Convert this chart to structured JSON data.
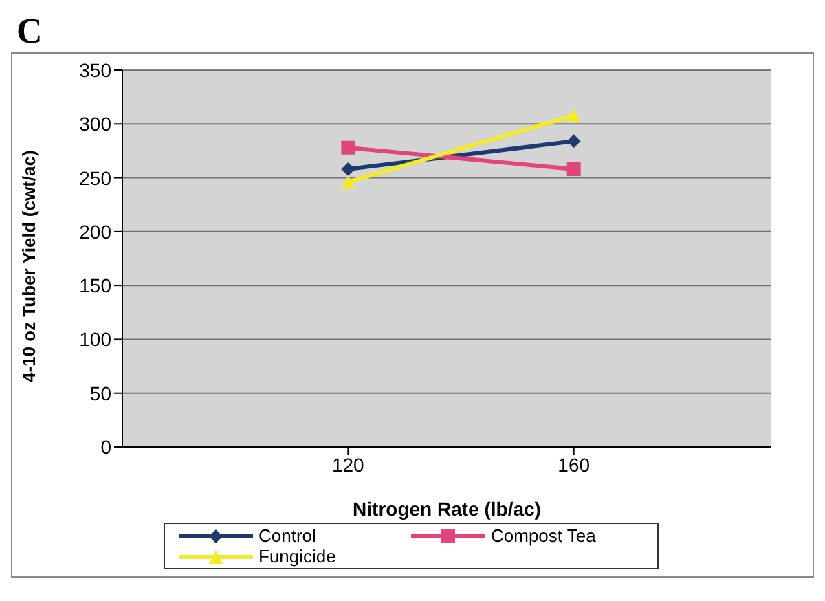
{
  "chart_data": {
    "type": "line",
    "title": "C",
    "xlabel": "Nitrogen Rate (lb/ac)",
    "ylabel": "4-10 oz Tuber Yield (cwt/ac)",
    "x": [
      120,
      160
    ],
    "xlim": [
      80,
      195
    ],
    "xticks": [
      120,
      160
    ],
    "ylim": [
      0,
      350
    ],
    "yticks": [
      0,
      50,
      100,
      150,
      200,
      250,
      300,
      350
    ],
    "grid": "y",
    "legend": "bottom",
    "series": [
      {
        "name": "Control",
        "color": "#1f3a6e",
        "values": [
          258,
          284
        ],
        "marker": "diamond"
      },
      {
        "name": "Compost Tea",
        "color": "#e0457b",
        "values": [
          278,
          258
        ],
        "marker": "square"
      },
      {
        "name": "Fungicide",
        "color": "#f2ea2a",
        "values": [
          246,
          308
        ],
        "marker": "triangle"
      }
    ]
  }
}
